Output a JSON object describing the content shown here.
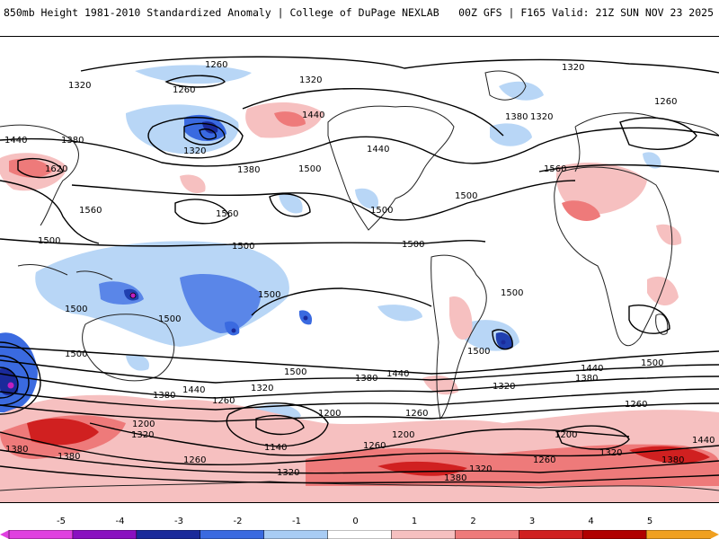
{
  "header": {
    "title_left": "850mb Height 1981-2010 Standardized Anomaly | College of DuPage NEXLAB",
    "title_right": "00Z GFS | F165 Valid: 21Z SUN NOV 23 2025"
  },
  "colorbar": {
    "ticks": [
      "-5",
      "-4",
      "-3",
      "-2",
      "-1",
      "0",
      "1",
      "2",
      "3",
      "4",
      "5"
    ],
    "colors": [
      "#e040e0",
      "#8a10c0",
      "#1a2a9a",
      "#3a6ae0",
      "#a8ccf4",
      "#ffffff",
      "#f6c0c0",
      "#ee7a7a",
      "#d02020",
      "#b00000",
      "#f0a020"
    ]
  },
  "contour_labels": [
    "1260",
    "1320",
    "1260",
    "1320",
    "1440",
    "1380",
    "1380",
    "1320",
    "1260",
    "1320",
    "1320",
    "1440",
    "1380",
    "1500",
    "1620",
    "1560",
    "1560",
    "1440",
    "1500",
    "1500",
    "1560",
    "1500",
    "1500",
    "1500",
    "1500",
    "1500",
    "1500",
    "1500",
    "1500",
    "1440",
    "1380",
    "1380",
    "1440",
    "1500",
    "1500",
    "1440",
    "1380",
    "1320",
    "1260",
    "1260",
    "1200",
    "1320",
    "1200",
    "1200",
    "1140",
    "1260",
    "1320",
    "1260",
    "1380",
    "1320",
    "1380",
    "1380",
    "1200",
    "1320",
    "1260",
    "1320",
    "1440",
    "1260",
    "1380",
    "1500"
  ]
}
